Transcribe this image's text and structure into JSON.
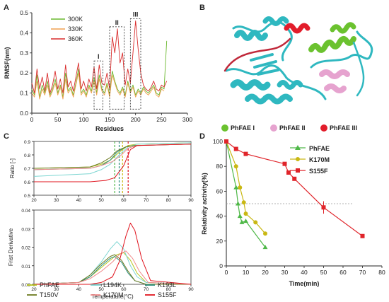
{
  "panels": {
    "A": "A",
    "B": "B",
    "C": "C",
    "D": "D"
  },
  "colors": {
    "k300": "#6ab82e",
    "k330": "#f0a050",
    "k360": "#d92b2b",
    "cyan": "#2fb8c0",
    "green": "#6bc22f",
    "pink": "#e6a3cf",
    "red": "#e21d2b",
    "PhFAE": "#b7c520",
    "L194K": "#7dd6d2",
    "K193L": "#2a8c7c",
    "T150V": "#6c7a1f",
    "K170M": "#f08a8a",
    "S155F": "#e0141e",
    "dPhFAE": "#4fb848",
    "dK170M": "#c9b814",
    "dS155F": "#e0242a"
  },
  "structure_legend": [
    "PhFAE I",
    "PhFAE II",
    "PhFAE III"
  ],
  "chart_data": [
    {
      "panel": "A",
      "type": "line",
      "xlabel": "Residues",
      "ylabel": "RMSF(nm)",
      "xlim": [
        0,
        300
      ],
      "ylim": [
        0,
        0.5
      ],
      "xticks": [
        0,
        50,
        100,
        150,
        200,
        250,
        300
      ],
      "yticks": [
        0.0,
        0.1,
        0.2,
        0.3,
        0.4,
        0.5
      ],
      "regions": [
        {
          "label": "I",
          "x": [
            120,
            137
          ],
          "y": [
            0.02,
            0.26
          ]
        },
        {
          "label": "II",
          "x": [
            150,
            178
          ],
          "y": [
            0.02,
            0.43
          ]
        },
        {
          "label": "III",
          "x": [
            190,
            210
          ],
          "y": [
            0.02,
            0.47
          ]
        }
      ],
      "series": [
        {
          "name": "300K",
          "x": [
            0,
            5,
            10,
            15,
            20,
            25,
            30,
            35,
            40,
            45,
            50,
            55,
            60,
            65,
            70,
            75,
            80,
            85,
            90,
            95,
            100,
            105,
            110,
            115,
            120,
            125,
            130,
            135,
            140,
            145,
            150,
            155,
            160,
            165,
            170,
            175,
            180,
            185,
            190,
            195,
            200,
            205,
            210,
            215,
            220,
            225,
            230,
            235,
            240,
            245,
            250,
            255,
            260
          ],
          "y": [
            0.12,
            0.09,
            0.19,
            0.08,
            0.14,
            0.1,
            0.16,
            0.09,
            0.12,
            0.17,
            0.1,
            0.14,
            0.08,
            0.2,
            0.11,
            0.13,
            0.09,
            0.15,
            0.22,
            0.1,
            0.12,
            0.09,
            0.14,
            0.11,
            0.18,
            0.1,
            0.19,
            0.12,
            0.1,
            0.15,
            0.09,
            0.21,
            0.16,
            0.12,
            0.1,
            0.13,
            0.09,
            0.16,
            0.11,
            0.14,
            0.09,
            0.12,
            0.1,
            0.13,
            0.11,
            0.1,
            0.12,
            0.14,
            0.1,
            0.09,
            0.13,
            0.12,
            0.36
          ]
        },
        {
          "name": "330K",
          "x": [
            0,
            5,
            10,
            15,
            20,
            25,
            30,
            35,
            40,
            45,
            50,
            55,
            60,
            65,
            70,
            75,
            80,
            85,
            90,
            95,
            100,
            105,
            110,
            115,
            120,
            125,
            130,
            135,
            140,
            145,
            150,
            155,
            160,
            165,
            170,
            175,
            180,
            185,
            190,
            195,
            200,
            205,
            210,
            215,
            220,
            225,
            230,
            235,
            240,
            245,
            250,
            255
          ],
          "y": [
            0.1,
            0.08,
            0.16,
            0.07,
            0.12,
            0.09,
            0.14,
            0.08,
            0.11,
            0.15,
            0.09,
            0.13,
            0.07,
            0.17,
            0.1,
            0.12,
            0.08,
            0.14,
            0.2,
            0.09,
            0.11,
            0.08,
            0.13,
            0.1,
            0.16,
            0.09,
            0.17,
            0.11,
            0.09,
            0.14,
            0.08,
            0.19,
            0.15,
            0.11,
            0.09,
            0.12,
            0.08,
            0.15,
            0.1,
            0.13,
            0.08,
            0.11,
            0.09,
            0.12,
            0.1,
            0.09,
            0.11,
            0.13,
            0.09,
            0.08,
            0.12,
            0.11
          ]
        },
        {
          "name": "360K",
          "x": [
            0,
            5,
            10,
            15,
            20,
            25,
            30,
            35,
            40,
            45,
            50,
            55,
            60,
            65,
            70,
            75,
            80,
            85,
            90,
            95,
            100,
            105,
            110,
            115,
            120,
            125,
            130,
            135,
            140,
            145,
            150,
            155,
            160,
            165,
            170,
            175,
            180,
            185,
            190,
            195,
            200,
            205,
            210,
            215,
            220,
            225,
            230,
            235,
            240,
            245,
            250,
            255,
            260
          ],
          "y": [
            0.15,
            0.1,
            0.22,
            0.12,
            0.18,
            0.11,
            0.2,
            0.1,
            0.14,
            0.21,
            0.12,
            0.17,
            0.1,
            0.24,
            0.13,
            0.16,
            0.11,
            0.18,
            0.25,
            0.12,
            0.16,
            0.11,
            0.17,
            0.13,
            0.23,
            0.12,
            0.24,
            0.15,
            0.14,
            0.2,
            0.12,
            0.38,
            0.3,
            0.42,
            0.25,
            0.3,
            0.14,
            0.22,
            0.15,
            0.3,
            0.46,
            0.32,
            0.2,
            0.14,
            0.12,
            0.11,
            0.13,
            0.16,
            0.12,
            0.11,
            0.14,
            0.13,
            0.16
          ]
        }
      ]
    },
    {
      "panel": "C-top",
      "type": "line",
      "xlabel": "",
      "ylabel": "Ratio [-]",
      "xlim": [
        20,
        90
      ],
      "ylim": [
        0.5,
        0.9
      ],
      "xticks": [
        20,
        30,
        40,
        50,
        60,
        70,
        80,
        90
      ],
      "yticks": [
        0.5,
        0.6,
        0.7,
        0.8,
        0.9
      ],
      "tm_lines": [
        {
          "x": 56,
          "color": "#4fb848"
        },
        {
          "x": 58,
          "color": "#2a8c7c"
        },
        {
          "x": 59.5,
          "color": "#c9b814"
        },
        {
          "x": 62,
          "color": "#e0141e"
        }
      ],
      "series": [
        {
          "name": "PhFAE",
          "x": [
            20,
            45,
            50,
            54,
            58,
            62,
            66,
            90
          ],
          "y": [
            0.7,
            0.71,
            0.73,
            0.76,
            0.82,
            0.87,
            0.88,
            0.89
          ]
        },
        {
          "name": "L194K",
          "x": [
            20,
            45,
            50,
            54,
            58,
            62,
            66,
            90
          ],
          "y": [
            0.64,
            0.66,
            0.69,
            0.73,
            0.8,
            0.86,
            0.88,
            0.89
          ]
        },
        {
          "name": "K193L",
          "x": [
            20,
            45,
            50,
            54,
            57,
            61,
            65,
            90
          ],
          "y": [
            0.69,
            0.7,
            0.72,
            0.76,
            0.82,
            0.86,
            0.87,
            0.88
          ]
        },
        {
          "name": "T150V",
          "x": [
            20,
            45,
            50,
            54,
            57,
            61,
            65,
            90
          ],
          "y": [
            0.7,
            0.71,
            0.74,
            0.78,
            0.83,
            0.86,
            0.87,
            0.88
          ]
        },
        {
          "name": "K170M",
          "x": [
            20,
            45,
            50,
            55,
            59,
            62,
            66,
            90
          ],
          "y": [
            0.69,
            0.7,
            0.72,
            0.75,
            0.8,
            0.85,
            0.87,
            0.88
          ]
        },
        {
          "name": "S155F",
          "x": [
            20,
            45,
            52,
            56,
            60,
            63,
            66,
            90
          ],
          "y": [
            0.6,
            0.6,
            0.61,
            0.63,
            0.72,
            0.84,
            0.87,
            0.88
          ]
        }
      ]
    },
    {
      "panel": "C-bottom",
      "type": "line",
      "xlabel": "Temperature(°C)",
      "ylabel": "Frist Derivative",
      "xlim": [
        20,
        90
      ],
      "ylim": [
        0,
        0.04
      ],
      "xticks": [
        20,
        30,
        40,
        50,
        60,
        70,
        80,
        90
      ],
      "yticks": [
        0.0,
        0.01,
        0.02,
        0.03,
        0.04
      ],
      "series": [
        {
          "name": "PhFAE",
          "x": [
            20,
            40,
            45,
            50,
            54,
            57,
            60,
            63,
            66,
            70,
            90
          ],
          "y": [
            0,
            0.001,
            0.004,
            0.009,
            0.013,
            0.016,
            0.017,
            0.013,
            0.006,
            0.001,
            0
          ]
        },
        {
          "name": "L194K",
          "x": [
            20,
            40,
            45,
            50,
            54,
            57,
            60,
            63,
            66,
            70,
            90
          ],
          "y": [
            0,
            0.001,
            0.005,
            0.012,
            0.019,
            0.023,
            0.019,
            0.01,
            0.004,
            0.001,
            0
          ]
        },
        {
          "name": "K193L",
          "x": [
            20,
            40,
            45,
            50,
            54,
            56,
            59,
            62,
            65,
            70,
            90
          ],
          "y": [
            0,
            0.001,
            0.004,
            0.01,
            0.014,
            0.015,
            0.012,
            0.006,
            0.002,
            0,
            0
          ]
        },
        {
          "name": "T150V",
          "x": [
            20,
            40,
            45,
            50,
            54,
            56,
            59,
            62,
            65,
            70,
            90
          ],
          "y": [
            0,
            0.001,
            0.005,
            0.011,
            0.015,
            0.016,
            0.013,
            0.007,
            0.002,
            0,
            0
          ]
        },
        {
          "name": "K170M",
          "x": [
            20,
            40,
            45,
            50,
            55,
            58,
            61,
            64,
            67,
            71,
            90
          ],
          "y": [
            0,
            0.001,
            0.003,
            0.007,
            0.012,
            0.016,
            0.018,
            0.014,
            0.007,
            0.001,
            0
          ]
        },
        {
          "name": "S155F",
          "x": [
            20,
            45,
            50,
            55,
            58,
            61,
            63,
            65,
            68,
            72,
            90
          ],
          "y": [
            0,
            0,
            0.001,
            0.004,
            0.012,
            0.026,
            0.033,
            0.029,
            0.014,
            0.002,
            0
          ]
        }
      ]
    },
    {
      "panel": "D",
      "type": "line",
      "xlabel": "Time(min)",
      "ylabel": "Relativity activity(%)",
      "xlim": [
        0,
        80
      ],
      "ylim": [
        0,
        100
      ],
      "xticks": [
        0,
        10,
        20,
        30,
        40,
        50,
        60,
        70,
        80
      ],
      "yticks": [
        0,
        20,
        40,
        60,
        80,
        100
      ],
      "reference_line": 50,
      "series": [
        {
          "name": "PhFAE",
          "marker": "triangle",
          "x": [
            0,
            5,
            6,
            7,
            8,
            10,
            20
          ],
          "y": [
            100,
            63,
            50,
            40,
            35,
            36,
            15
          ]
        },
        {
          "name": "K170M",
          "marker": "circle",
          "x": [
            0,
            5,
            7,
            9,
            10,
            15,
            20
          ],
          "y": [
            100,
            80,
            63,
            51,
            42,
            35,
            26
          ]
        },
        {
          "name": "S155F",
          "marker": "square",
          "x": [
            0,
            5,
            10,
            30,
            32,
            35,
            50,
            70
          ],
          "y": [
            100,
            94,
            90,
            82,
            75,
            70,
            47,
            24
          ],
          "err": [
            0,
            0,
            0,
            0,
            0,
            0,
            5,
            0
          ]
        }
      ]
    }
  ]
}
